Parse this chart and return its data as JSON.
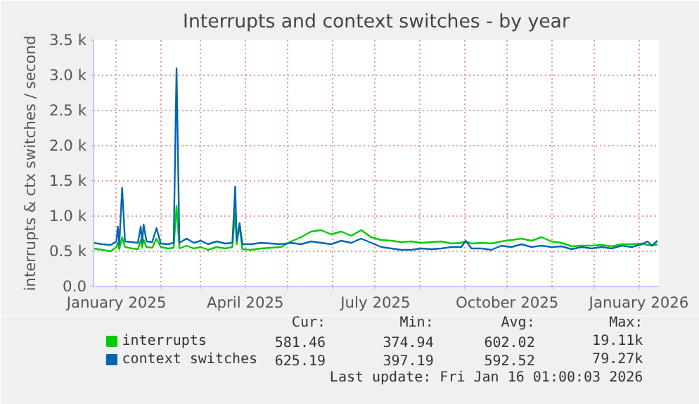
{
  "chart_data": {
    "type": "line",
    "title": "Interrupts and context switches - by year",
    "ylabel": "interrupts & ctx switches / second",
    "x": [
      "2024-12-16",
      "2024-12-22",
      "2024-12-28",
      "2025-01-01",
      "2025-01-02",
      "2025-01-03",
      "2025-01-05",
      "2025-01-07",
      "2025-01-12",
      "2025-01-16",
      "2025-01-18",
      "2025-01-19",
      "2025-01-20",
      "2025-01-22",
      "2025-01-26",
      "2025-01-29",
      "2025-02-01",
      "2025-02-06",
      "2025-02-10",
      "2025-02-12",
      "2025-02-14",
      "2025-02-19",
      "2025-02-24",
      "2025-03-01",
      "2025-03-06",
      "2025-03-12",
      "2025-03-18",
      "2025-03-23",
      "2025-03-25",
      "2025-03-26",
      "2025-03-28",
      "2025-03-30",
      "2025-04-05",
      "2025-04-12",
      "2025-04-19",
      "2025-04-26",
      "2025-05-03",
      "2025-05-10",
      "2025-05-17",
      "2025-05-24",
      "2025-05-31",
      "2025-06-07",
      "2025-06-14",
      "2025-06-21",
      "2025-06-28",
      "2025-07-05",
      "2025-07-12",
      "2025-07-19",
      "2025-07-26",
      "2025-08-02",
      "2025-08-09",
      "2025-08-16",
      "2025-08-23",
      "2025-08-30",
      "2025-09-02",
      "2025-09-06",
      "2025-09-13",
      "2025-09-20",
      "2025-09-27",
      "2025-10-04",
      "2025-10-11",
      "2025-10-18",
      "2025-10-25",
      "2025-11-01",
      "2025-11-08",
      "2025-11-15",
      "2025-11-22",
      "2025-11-29",
      "2025-12-06",
      "2025-12-13",
      "2025-12-20",
      "2025-12-27",
      "2026-01-03",
      "2026-01-07",
      "2026-01-10",
      "2026-01-14"
    ],
    "series": [
      {
        "name": "interrupts",
        "color": "#00cc00",
        "values": [
          540,
          520,
          500,
          560,
          620,
          530,
          700,
          560,
          540,
          530,
          660,
          560,
          660,
          560,
          550,
          680,
          560,
          540,
          550,
          1150,
          540,
          580,
          540,
          560,
          520,
          560,
          540,
          560,
          1050,
          600,
          860,
          530,
          520,
          540,
          550,
          560,
          640,
          700,
          780,
          800,
          740,
          780,
          720,
          800,
          700,
          660,
          650,
          630,
          640,
          620,
          630,
          640,
          610,
          620,
          640,
          610,
          620,
          610,
          640,
          660,
          680,
          650,
          700,
          640,
          620,
          570,
          580,
          580,
          590,
          570,
          600,
          600,
          610,
          590,
          580,
          600
        ]
      },
      {
        "name": "context switches",
        "color": "#0066b3",
        "values": [
          620,
          600,
          590,
          640,
          850,
          600,
          1400,
          640,
          630,
          620,
          850,
          620,
          880,
          640,
          630,
          830,
          610,
          600,
          620,
          3100,
          620,
          680,
          620,
          650,
          600,
          640,
          610,
          620,
          1420,
          650,
          900,
          600,
          600,
          620,
          610,
          600,
          620,
          600,
          640,
          620,
          600,
          650,
          620,
          680,
          620,
          560,
          540,
          520,
          520,
          540,
          530,
          540,
          560,
          560,
          650,
          540,
          540,
          520,
          580,
          560,
          600,
          560,
          580,
          560,
          570,
          530,
          560,
          540,
          560,
          540,
          580,
          560,
          600,
          640,
          580,
          650
        ]
      }
    ],
    "xlim": [
      "2024-12-16",
      "2026-01-15"
    ],
    "xticks": [
      {
        "value": "2025-01-01",
        "label": "January 2025"
      },
      {
        "value": "2025-02-01",
        "label": null
      },
      {
        "value": "2025-03-01",
        "label": null
      },
      {
        "value": "2025-04-01",
        "label": "April 2025"
      },
      {
        "value": "2025-05-01",
        "label": null
      },
      {
        "value": "2025-06-01",
        "label": null
      },
      {
        "value": "2025-07-01",
        "label": "July 2025"
      },
      {
        "value": "2025-08-01",
        "label": null
      },
      {
        "value": "2025-09-01",
        "label": null
      },
      {
        "value": "2025-10-01",
        "label": "October 2025"
      },
      {
        "value": "2025-11-01",
        "label": null
      },
      {
        "value": "2025-12-01",
        "label": null
      },
      {
        "value": "2026-01-01",
        "label": "January 2026"
      }
    ],
    "ylim": [
      0,
      3500
    ],
    "yticks": [
      {
        "value": 0,
        "label": "0.0"
      },
      {
        "value": 500,
        "label": "0.5 k"
      },
      {
        "value": 1000,
        "label": "1.0 k"
      },
      {
        "value": 1500,
        "label": "1.5 k"
      },
      {
        "value": 2000,
        "label": "2.0 k"
      },
      {
        "value": 2500,
        "label": "2.5 k"
      },
      {
        "value": 3000,
        "label": "3.0 k"
      },
      {
        "value": 3500,
        "label": "3.5 k"
      }
    ],
    "grid": true,
    "legend": "bottom",
    "marker": "none",
    "line_style": "solid",
    "annotations": [
      "Cur:",
      "Min:",
      "Avg:",
      "Max:",
      "581.46",
      "374.94",
      "602.02",
      "19.11k",
      "625.19",
      "397.19",
      "592.52",
      "79.27k",
      "Last update: Fri Jan 16 01:00:03 2026"
    ]
  }
}
